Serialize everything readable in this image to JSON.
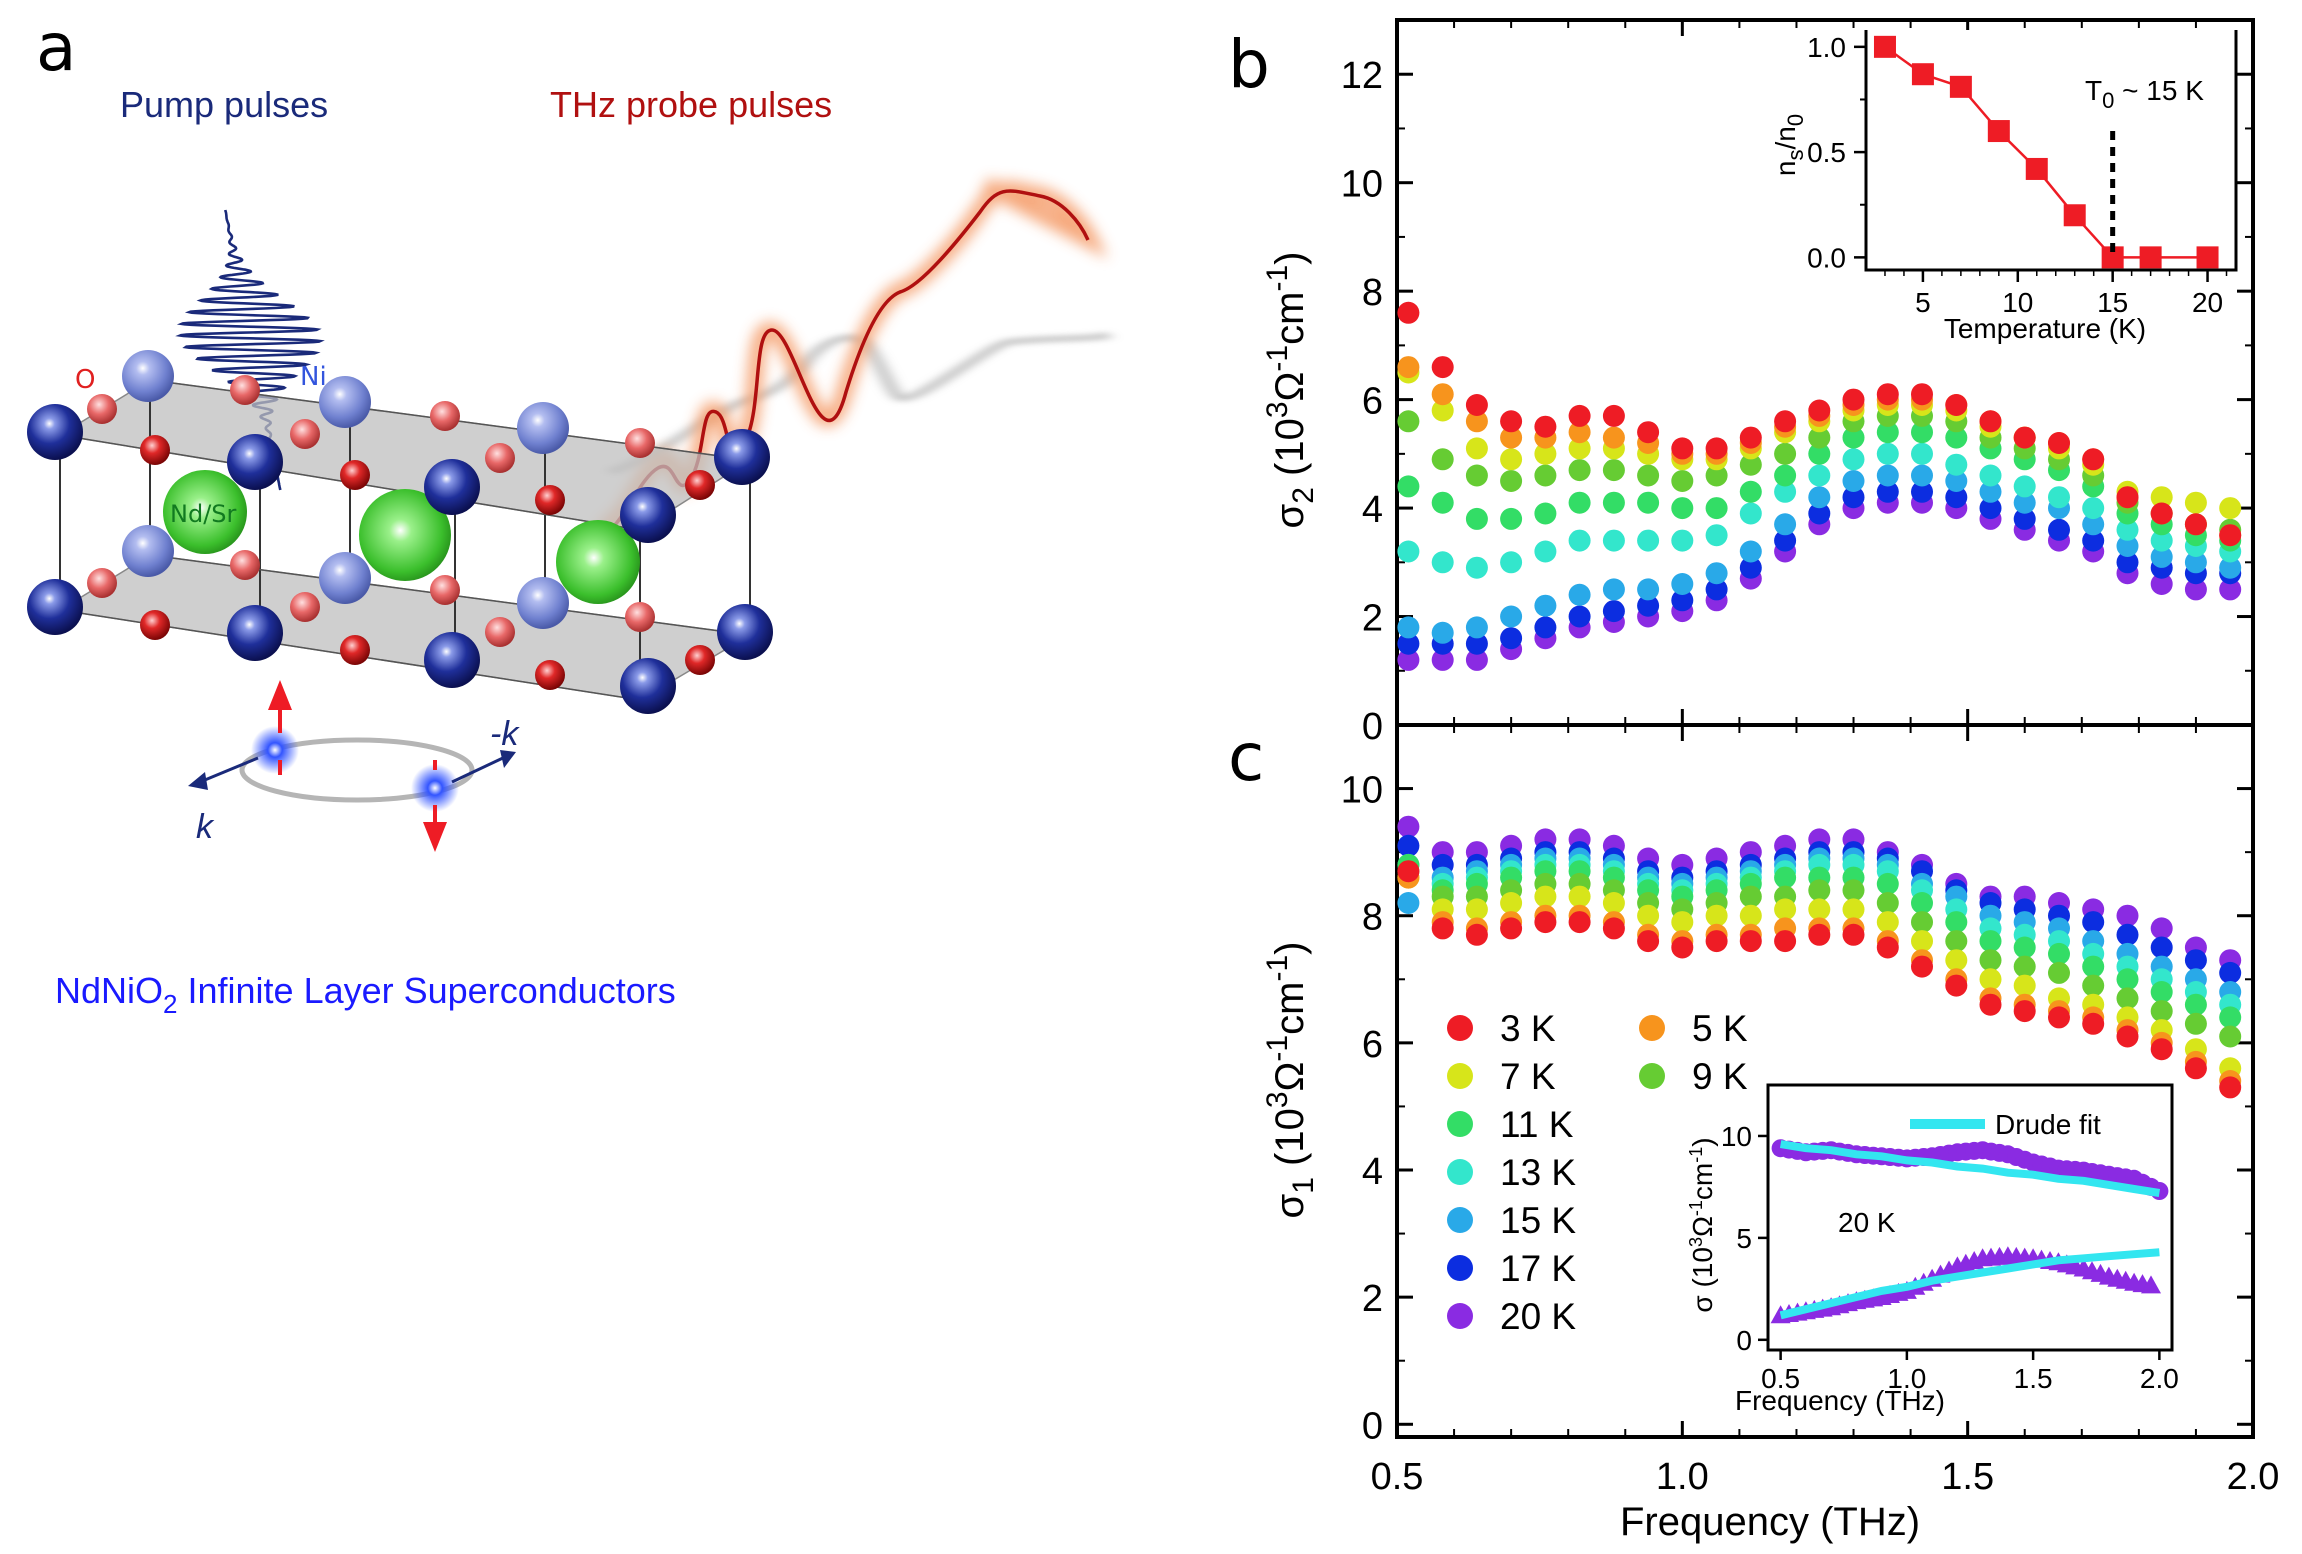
{
  "panel_a": {
    "label": "a",
    "pump_label": "Pump pulses",
    "probe_label": "THz probe pulses",
    "atom_o": "O",
    "atom_ni": "Ni",
    "atom_ndsr": "Nd/Sr",
    "k_label": "k",
    "minus_k_label": "-k",
    "caption_pre": "NdNiO",
    "caption_sub": "2",
    "caption_post": " Infinite Layer Superconductors",
    "colors": {
      "pump": "#1a2a7a",
      "probe": "#b01010",
      "caption": "#1a1aff",
      "o_label": "#e02020",
      "ni_label": "#3355dd"
    }
  },
  "chart_data": [
    {
      "id": "b",
      "type": "scatter",
      "panel_label": "b",
      "ylabel": "σ2 (10^3 Ω^-1 cm^-1)",
      "xlabel": "Frequency (THz)",
      "xlim": [
        0.5,
        2.0
      ],
      "ylim": [
        0,
        13
      ],
      "yticks": [
        "0",
        "2",
        "4",
        "6",
        "8",
        "10",
        "12"
      ],
      "x": [
        0.52,
        0.58,
        0.64,
        0.7,
        0.76,
        0.82,
        0.88,
        0.94,
        1.0,
        1.06,
        1.12,
        1.18,
        1.24,
        1.3,
        1.36,
        1.42,
        1.48,
        1.54,
        1.6,
        1.66,
        1.72,
        1.78,
        1.84,
        1.9,
        1.96
      ],
      "series": [
        {
          "name": "3 K",
          "color": "#ee1c25",
          "values": [
            7.6,
            6.6,
            5.9,
            5.6,
            5.5,
            5.7,
            5.7,
            5.4,
            5.1,
            5.1,
            5.3,
            5.6,
            5.8,
            6.0,
            6.1,
            6.1,
            5.9,
            5.6,
            5.3,
            5.2,
            4.9,
            4.2,
            3.9,
            3.7,
            3.5
          ]
        },
        {
          "name": "5 K",
          "color": "#f7941d",
          "values": [
            6.6,
            6.1,
            5.6,
            5.3,
            5.3,
            5.4,
            5.3,
            5.2,
            5.0,
            5.0,
            5.2,
            5.5,
            5.7,
            5.9,
            6.0,
            6.0,
            5.9,
            5.6,
            5.3,
            5.2,
            4.9,
            4.2,
            3.9,
            3.7,
            3.5
          ]
        },
        {
          "name": "7 K",
          "color": "#d7e51a",
          "values": [
            6.5,
            5.8,
            5.1,
            4.9,
            5.0,
            5.1,
            5.1,
            5.0,
            4.9,
            4.9,
            5.1,
            5.4,
            5.6,
            5.8,
            5.9,
            5.9,
            5.8,
            5.5,
            5.3,
            5.1,
            4.8,
            4.3,
            4.2,
            4.1,
            4.0
          ]
        },
        {
          "name": "9 K",
          "color": "#66cc33",
          "values": [
            5.6,
            4.9,
            4.6,
            4.5,
            4.6,
            4.7,
            4.7,
            4.6,
            4.5,
            4.6,
            4.8,
            5.0,
            5.3,
            5.6,
            5.7,
            5.7,
            5.6,
            5.3,
            5.1,
            4.9,
            4.6,
            4.1,
            3.9,
            3.7,
            3.6
          ]
        },
        {
          "name": "11 K",
          "color": "#33dd66",
          "values": [
            4.4,
            4.1,
            3.8,
            3.8,
            3.9,
            4.1,
            4.1,
            4.1,
            4.0,
            4.0,
            4.3,
            4.6,
            5.0,
            5.3,
            5.4,
            5.4,
            5.3,
            5.1,
            4.9,
            4.7,
            4.4,
            3.9,
            3.7,
            3.5,
            3.4
          ]
        },
        {
          "name": "13 K",
          "color": "#33e6cc",
          "values": [
            3.2,
            3.0,
            2.9,
            3.0,
            3.2,
            3.4,
            3.4,
            3.4,
            3.4,
            3.5,
            3.9,
            4.3,
            4.6,
            4.9,
            5.0,
            5.0,
            4.8,
            4.6,
            4.4,
            4.2,
            4.0,
            3.6,
            3.4,
            3.3,
            3.2
          ]
        },
        {
          "name": "15 K",
          "color": "#29a9e8",
          "values": [
            1.8,
            1.7,
            1.8,
            2.0,
            2.2,
            2.4,
            2.5,
            2.5,
            2.6,
            2.8,
            3.2,
            3.7,
            4.2,
            4.5,
            4.6,
            4.6,
            4.5,
            4.3,
            4.1,
            4.0,
            3.7,
            3.3,
            3.1,
            3.0,
            2.9
          ]
        },
        {
          "name": "17 K",
          "color": "#0c2de0",
          "values": [
            1.5,
            1.5,
            1.5,
            1.6,
            1.8,
            2.0,
            2.1,
            2.2,
            2.3,
            2.5,
            2.9,
            3.4,
            3.9,
            4.2,
            4.3,
            4.3,
            4.2,
            4.0,
            3.8,
            3.6,
            3.4,
            3.0,
            2.9,
            2.8,
            2.8
          ]
        },
        {
          "name": "20 K",
          "color": "#8a2be2",
          "values": [
            1.2,
            1.2,
            1.2,
            1.4,
            1.6,
            1.8,
            1.9,
            2.0,
            2.1,
            2.3,
            2.7,
            3.2,
            3.7,
            4.0,
            4.1,
            4.1,
            4.0,
            3.8,
            3.6,
            3.4,
            3.2,
            2.8,
            2.6,
            2.5,
            2.5
          ]
        }
      ],
      "inset": {
        "type": "line",
        "xlabel": "Temperature (K)",
        "ylabel": "ns/n0",
        "annotation": "T0 ~ 15 K",
        "xlim": [
          2,
          21.5
        ],
        "ylim": [
          -0.06,
          1.08
        ],
        "xticks": [
          "5",
          "10",
          "15",
          "20"
        ],
        "yticks": [
          "0.0",
          "0.5",
          "1.0"
        ],
        "x": [
          3,
          5,
          7,
          9,
          11,
          13,
          15,
          17,
          20
        ],
        "values": [
          1.0,
          0.87,
          0.81,
          0.6,
          0.42,
          0.2,
          0.0,
          0.0,
          0.0
        ],
        "vline_x": 15,
        "color": "#ee1c25"
      }
    },
    {
      "id": "c",
      "type": "scatter",
      "panel_label": "c",
      "ylabel": "σ1 (10^3 Ω^-1 cm^-1)",
      "xlabel": "Frequency (THz)",
      "xlim": [
        0.5,
        2.0
      ],
      "ylim": [
        -0.2,
        11
      ],
      "xticks": [
        "0.5",
        "1.0",
        "1.5",
        "2.0"
      ],
      "yticks": [
        "0",
        "2",
        "4",
        "6",
        "8",
        "10"
      ],
      "x": [
        0.52,
        0.58,
        0.64,
        0.7,
        0.76,
        0.82,
        0.88,
        0.94,
        1.0,
        1.06,
        1.12,
        1.18,
        1.24,
        1.3,
        1.36,
        1.42,
        1.48,
        1.54,
        1.6,
        1.66,
        1.72,
        1.78,
        1.84,
        1.9,
        1.96
      ],
      "series": [
        {
          "name": "3 K",
          "color": "#ee1c25",
          "values": [
            8.7,
            7.8,
            7.7,
            7.8,
            7.9,
            7.9,
            7.8,
            7.6,
            7.5,
            7.6,
            7.6,
            7.6,
            7.7,
            7.7,
            7.5,
            7.2,
            6.9,
            6.6,
            6.5,
            6.4,
            6.3,
            6.1,
            5.9,
            5.6,
            5.3
          ]
        },
        {
          "name": "5 K",
          "color": "#f7941d",
          "values": [
            8.6,
            7.9,
            7.8,
            7.9,
            8.0,
            8.0,
            7.9,
            7.7,
            7.6,
            7.7,
            7.7,
            7.8,
            7.8,
            7.8,
            7.6,
            7.3,
            7.0,
            6.7,
            6.6,
            6.5,
            6.4,
            6.2,
            6.0,
            5.7,
            5.4
          ]
        },
        {
          "name": "7 K",
          "color": "#d7e51a",
          "values": [
            8.6,
            8.1,
            8.1,
            8.2,
            8.3,
            8.3,
            8.2,
            8.0,
            7.9,
            8.0,
            8.0,
            8.1,
            8.1,
            8.1,
            7.9,
            7.6,
            7.3,
            7.0,
            6.9,
            6.7,
            6.6,
            6.4,
            6.2,
            5.9,
            5.6
          ]
        },
        {
          "name": "9 K",
          "color": "#66cc33",
          "values": [
            8.7,
            8.3,
            8.3,
            8.4,
            8.5,
            8.5,
            8.4,
            8.2,
            8.1,
            8.2,
            8.3,
            8.3,
            8.4,
            8.4,
            8.2,
            7.9,
            7.6,
            7.3,
            7.2,
            7.1,
            6.9,
            6.7,
            6.5,
            6.3,
            6.1
          ]
        },
        {
          "name": "11 K",
          "color": "#33dd66",
          "values": [
            8.8,
            8.4,
            8.5,
            8.6,
            8.7,
            8.7,
            8.6,
            8.4,
            8.3,
            8.4,
            8.5,
            8.6,
            8.6,
            8.6,
            8.5,
            8.2,
            7.9,
            7.6,
            7.5,
            7.4,
            7.2,
            7.0,
            6.8,
            6.6,
            6.4
          ]
        },
        {
          "name": "13 K",
          "color": "#33e6cc",
          "values": [
            8.8,
            8.5,
            8.6,
            8.7,
            8.8,
            8.8,
            8.7,
            8.5,
            8.4,
            8.5,
            8.6,
            8.7,
            8.8,
            8.8,
            8.7,
            8.4,
            8.1,
            7.8,
            7.7,
            7.6,
            7.4,
            7.2,
            7.0,
            6.8,
            6.6
          ]
        },
        {
          "name": "15 K",
          "color": "#29a9e8",
          "values": [
            8.2,
            8.6,
            8.7,
            8.8,
            8.9,
            8.9,
            8.8,
            8.6,
            8.5,
            8.6,
            8.7,
            8.8,
            8.9,
            8.9,
            8.8,
            8.5,
            8.3,
            8.0,
            7.9,
            7.8,
            7.6,
            7.4,
            7.2,
            7.0,
            6.8
          ]
        },
        {
          "name": "17 K",
          "color": "#0c2de0",
          "values": [
            9.1,
            8.8,
            8.8,
            8.9,
            9.0,
            9.0,
            8.9,
            8.7,
            8.6,
            8.7,
            8.8,
            8.9,
            9.0,
            9.0,
            8.9,
            8.7,
            8.4,
            8.2,
            8.1,
            8.0,
            7.9,
            7.7,
            7.5,
            7.3,
            7.1
          ]
        },
        {
          "name": "20 K",
          "color": "#8a2be2",
          "values": [
            9.4,
            9.0,
            9.0,
            9.1,
            9.2,
            9.2,
            9.1,
            8.9,
            8.8,
            8.9,
            9.0,
            9.1,
            9.2,
            9.2,
            9.0,
            8.8,
            8.5,
            8.3,
            8.3,
            8.2,
            8.1,
            8.0,
            7.8,
            7.5,
            7.3
          ]
        }
      ],
      "legend": [
        "3 K",
        "5 K",
        "7 K",
        "9 K",
        "11 K",
        "13 K",
        "15 K",
        "17 K",
        "20 K"
      ],
      "inset": {
        "type": "scatter",
        "legend_label": "Drude fit",
        "temperature_label": "20 K",
        "xlabel": "Frequency (THz)",
        "ylabel": "σ (10^3 Ω^-1 cm^-1)",
        "xlim": [
          0.45,
          2.05
        ],
        "ylim": [
          -0.5,
          12.5
        ],
        "xticks": [
          "0.5",
          "1.0",
          "1.5",
          "2.0"
        ],
        "yticks": [
          "0",
          "5",
          "10"
        ],
        "fit_color": "#33e6f0",
        "data_color": "#8a2be2",
        "x": [
          0.5,
          0.6,
          0.7,
          0.8,
          0.9,
          1.0,
          1.1,
          1.2,
          1.3,
          1.4,
          1.5,
          1.6,
          1.7,
          1.8,
          1.9,
          2.0
        ],
        "sigma1": [
          9.4,
          9.2,
          9.3,
          9.1,
          9.0,
          8.9,
          9.0,
          9.2,
          9.3,
          9.1,
          8.7,
          8.4,
          8.3,
          8.1,
          7.9,
          7.3
        ],
        "sigma2": [
          1.2,
          1.4,
          1.6,
          1.9,
          2.1,
          2.4,
          3.0,
          3.6,
          4.0,
          4.1,
          4.0,
          3.8,
          3.5,
          3.1,
          2.8,
          2.6
        ],
        "fit1": [
          9.6,
          9.4,
          9.3,
          9.1,
          9.0,
          8.8,
          8.7,
          8.5,
          8.4,
          8.2,
          8.1,
          7.9,
          7.8,
          7.6,
          7.4,
          7.2
        ],
        "fit2": [
          1.2,
          1.5,
          1.8,
          2.1,
          2.4,
          2.6,
          2.9,
          3.1,
          3.3,
          3.5,
          3.7,
          3.9,
          4.0,
          4.1,
          4.2,
          4.3
        ]
      }
    }
  ]
}
